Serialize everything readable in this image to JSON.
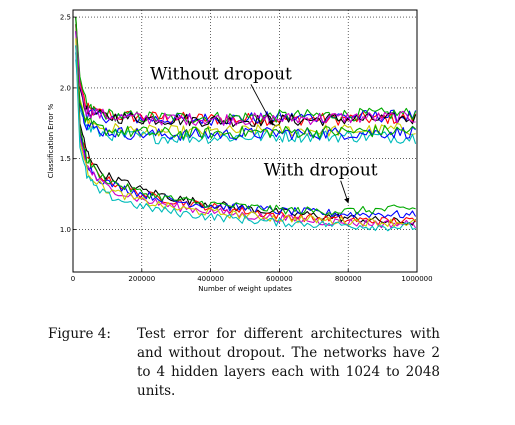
{
  "chart_data": {
    "type": "line",
    "title": "",
    "xlabel": "Number of weight updates",
    "ylabel": "Classification Error %",
    "xlim": [
      0,
      1000000
    ],
    "ylim": [
      0.7,
      2.55
    ],
    "x_ticks": [
      0,
      200000,
      400000,
      600000,
      800000,
      1000000
    ],
    "x_tick_labels": [
      "0",
      "200000",
      "400000",
      "600000",
      "800000",
      "1000000"
    ],
    "y_ticks": [
      1.0,
      1.5,
      2.0,
      2.5
    ],
    "y_tick_labels": [
      "1.0",
      "1.5",
      "2.0",
      "2.5"
    ],
    "grid": true,
    "legend": "none",
    "annotations": [
      {
        "text": "Without dropout",
        "x": 430000,
        "y": 2.06,
        "arrow_to": [
          580000,
          1.74
        ]
      },
      {
        "text": "With dropout",
        "x": 720000,
        "y": 1.38,
        "arrow_to": [
          800000,
          1.19
        ]
      }
    ],
    "series": [
      {
        "color": "#ff0000",
        "group": "without",
        "values": [
          [
            8000,
            2.5
          ],
          [
            20000,
            2.05
          ],
          [
            40000,
            1.85
          ],
          [
            80000,
            1.82
          ],
          [
            150000,
            1.8
          ],
          [
            250000,
            1.79
          ],
          [
            400000,
            1.78
          ],
          [
            600000,
            1.78
          ],
          [
            800000,
            1.78
          ],
          [
            1000000,
            1.79
          ]
        ]
      },
      {
        "color": "#0000ff",
        "group": "without",
        "values": [
          [
            8000,
            2.45
          ],
          [
            20000,
            2.0
          ],
          [
            40000,
            1.82
          ],
          [
            80000,
            1.8
          ],
          [
            150000,
            1.79
          ],
          [
            250000,
            1.78
          ],
          [
            400000,
            1.78
          ],
          [
            600000,
            1.79
          ],
          [
            800000,
            1.8
          ],
          [
            1000000,
            1.8
          ]
        ]
      },
      {
        "color": "#00aa00",
        "group": "without",
        "values": [
          [
            8000,
            2.5
          ],
          [
            20000,
            2.08
          ],
          [
            40000,
            1.86
          ],
          [
            80000,
            1.82
          ],
          [
            150000,
            1.8
          ],
          [
            250000,
            1.79
          ],
          [
            400000,
            1.79
          ],
          [
            600000,
            1.8
          ],
          [
            800000,
            1.81
          ],
          [
            1000000,
            1.82
          ]
        ]
      },
      {
        "color": "#000000",
        "group": "without",
        "values": [
          [
            8000,
            2.4
          ],
          [
            20000,
            2.0
          ],
          [
            40000,
            1.83
          ],
          [
            80000,
            1.8
          ],
          [
            150000,
            1.79
          ],
          [
            250000,
            1.78
          ],
          [
            400000,
            1.77
          ],
          [
            600000,
            1.77
          ],
          [
            800000,
            1.78
          ],
          [
            1000000,
            1.78
          ]
        ]
      },
      {
        "color": "#cc00cc",
        "group": "without",
        "values": [
          [
            8000,
            2.45
          ],
          [
            20000,
            2.02
          ],
          [
            40000,
            1.84
          ],
          [
            80000,
            1.81
          ],
          [
            150000,
            1.79
          ],
          [
            250000,
            1.78
          ],
          [
            400000,
            1.78
          ],
          [
            600000,
            1.78
          ],
          [
            800000,
            1.79
          ],
          [
            1000000,
            1.79
          ]
        ]
      },
      {
        "color": "#cccc00",
        "group": "without",
        "values": [
          [
            8000,
            2.3
          ],
          [
            20000,
            1.92
          ],
          [
            40000,
            1.76
          ],
          [
            80000,
            1.72
          ],
          [
            150000,
            1.7
          ],
          [
            250000,
            1.69
          ],
          [
            400000,
            1.69
          ],
          [
            600000,
            1.7
          ],
          [
            800000,
            1.7
          ],
          [
            1000000,
            1.71
          ]
        ]
      },
      {
        "color": "#00bbbb",
        "group": "without",
        "values": [
          [
            8000,
            2.2
          ],
          [
            20000,
            1.85
          ],
          [
            40000,
            1.72
          ],
          [
            80000,
            1.68
          ],
          [
            150000,
            1.66
          ],
          [
            250000,
            1.65
          ],
          [
            400000,
            1.65
          ],
          [
            600000,
            1.66
          ],
          [
            800000,
            1.66
          ],
          [
            1000000,
            1.65
          ]
        ]
      },
      {
        "color": "#0000ff",
        "group": "without",
        "values": [
          [
            8000,
            2.25
          ],
          [
            20000,
            1.88
          ],
          [
            40000,
            1.74
          ],
          [
            80000,
            1.7
          ],
          [
            150000,
            1.68
          ],
          [
            250000,
            1.67
          ],
          [
            400000,
            1.67
          ],
          [
            600000,
            1.68
          ],
          [
            800000,
            1.68
          ],
          [
            1000000,
            1.69
          ]
        ]
      },
      {
        "color": "#00aa00",
        "group": "without",
        "values": [
          [
            8000,
            2.3
          ],
          [
            20000,
            1.9
          ],
          [
            40000,
            1.75
          ],
          [
            80000,
            1.71
          ],
          [
            150000,
            1.69
          ],
          [
            250000,
            1.68
          ],
          [
            400000,
            1.68
          ],
          [
            600000,
            1.69
          ],
          [
            800000,
            1.69
          ],
          [
            1000000,
            1.7
          ]
        ]
      },
      {
        "color": "#000000",
        "group": "with",
        "values": [
          [
            8000,
            2.5
          ],
          [
            20000,
            1.75
          ],
          [
            40000,
            1.55
          ],
          [
            70000,
            1.43
          ],
          [
            100000,
            1.38
          ],
          [
            150000,
            1.33
          ],
          [
            200000,
            1.28
          ],
          [
            300000,
            1.22
          ],
          [
            400000,
            1.18
          ],
          [
            500000,
            1.15
          ],
          [
            600000,
            1.12
          ],
          [
            700000,
            1.1
          ],
          [
            800000,
            1.08
          ],
          [
            900000,
            1.06
          ],
          [
            1000000,
            1.05
          ]
        ]
      },
      {
        "color": "#ff0000",
        "group": "with",
        "values": [
          [
            8000,
            2.45
          ],
          [
            20000,
            1.7
          ],
          [
            40000,
            1.5
          ],
          [
            70000,
            1.4
          ],
          [
            100000,
            1.35
          ],
          [
            150000,
            1.3
          ],
          [
            200000,
            1.25
          ],
          [
            300000,
            1.2
          ],
          [
            400000,
            1.16
          ],
          [
            500000,
            1.13
          ],
          [
            600000,
            1.1
          ],
          [
            700000,
            1.08
          ],
          [
            800000,
            1.07
          ],
          [
            900000,
            1.06
          ],
          [
            1000000,
            1.06
          ]
        ]
      },
      {
        "color": "#0000ff",
        "group": "with",
        "values": [
          [
            8000,
            2.4
          ],
          [
            20000,
            1.68
          ],
          [
            40000,
            1.47
          ],
          [
            70000,
            1.37
          ],
          [
            100000,
            1.33
          ],
          [
            150000,
            1.29
          ],
          [
            200000,
            1.25
          ],
          [
            300000,
            1.2
          ],
          [
            400000,
            1.17
          ],
          [
            500000,
            1.15
          ],
          [
            600000,
            1.13
          ],
          [
            700000,
            1.12
          ],
          [
            800000,
            1.11
          ],
          [
            900000,
            1.11
          ],
          [
            1000000,
            1.1
          ]
        ]
      },
      {
        "color": "#00aa00",
        "group": "with",
        "values": [
          [
            8000,
            2.5
          ],
          [
            20000,
            1.72
          ],
          [
            40000,
            1.5
          ],
          [
            70000,
            1.4
          ],
          [
            100000,
            1.35
          ],
          [
            150000,
            1.3
          ],
          [
            200000,
            1.26
          ],
          [
            300000,
            1.21
          ],
          [
            400000,
            1.18
          ],
          [
            500000,
            1.16
          ],
          [
            600000,
            1.14
          ],
          [
            700000,
            1.13
          ],
          [
            800000,
            1.13
          ],
          [
            900000,
            1.14
          ],
          [
            1000000,
            1.15
          ]
        ]
      },
      {
        "color": "#cc00cc",
        "group": "with",
        "values": [
          [
            8000,
            2.4
          ],
          [
            20000,
            1.65
          ],
          [
            40000,
            1.45
          ],
          [
            70000,
            1.35
          ],
          [
            100000,
            1.3
          ],
          [
            150000,
            1.25
          ],
          [
            200000,
            1.21
          ],
          [
            300000,
            1.16
          ],
          [
            400000,
            1.13
          ],
          [
            500000,
            1.1
          ],
          [
            600000,
            1.08
          ],
          [
            700000,
            1.06
          ],
          [
            800000,
            1.05
          ],
          [
            900000,
            1.04
          ],
          [
            1000000,
            1.04
          ]
        ]
      },
      {
        "color": "#cccc00",
        "group": "with",
        "values": [
          [
            8000,
            2.35
          ],
          [
            20000,
            1.62
          ],
          [
            40000,
            1.42
          ],
          [
            70000,
            1.33
          ],
          [
            100000,
            1.28
          ],
          [
            150000,
            1.24
          ],
          [
            200000,
            1.2
          ],
          [
            300000,
            1.15
          ],
          [
            400000,
            1.12
          ],
          [
            500000,
            1.1
          ],
          [
            600000,
            1.08
          ],
          [
            700000,
            1.07
          ],
          [
            800000,
            1.06
          ],
          [
            900000,
            1.05
          ],
          [
            1000000,
            1.05
          ]
        ]
      },
      {
        "color": "#00bbbb",
        "group": "with",
        "values": [
          [
            8000,
            2.3
          ],
          [
            20000,
            1.58
          ],
          [
            40000,
            1.38
          ],
          [
            70000,
            1.28
          ],
          [
            100000,
            1.24
          ],
          [
            150000,
            1.2
          ],
          [
            200000,
            1.16
          ],
          [
            300000,
            1.12
          ],
          [
            400000,
            1.09
          ],
          [
            500000,
            1.07
          ],
          [
            600000,
            1.05
          ],
          [
            700000,
            1.04
          ],
          [
            800000,
            1.03
          ],
          [
            900000,
            1.02
          ],
          [
            1000000,
            1.02
          ]
        ]
      }
    ]
  },
  "caption": {
    "label": "Figure 4:",
    "text": "Test error for different architectures with and without dropout. The networks have 2 to 4 hidden layers each with 1024 to 2048 units."
  }
}
